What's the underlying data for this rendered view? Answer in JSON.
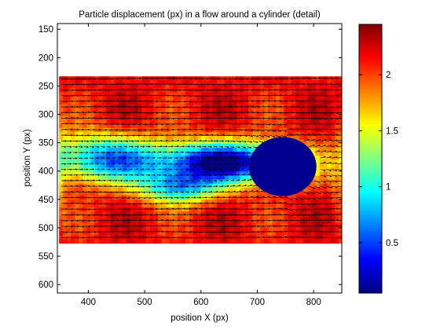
{
  "chart_data": {
    "type": "heatmap",
    "title": "Particle displacement (px) in a flow around a cylinder (detail)",
    "xlabel": "position X (px)",
    "ylabel": "position Y (px)",
    "xlim": [
      345,
      850
    ],
    "ylim": [
      140,
      615
    ],
    "y_reversed": true,
    "x_ticks": [
      400,
      500,
      600,
      700,
      800
    ],
    "y_ticks": [
      150,
      200,
      250,
      300,
      350,
      400,
      450,
      500,
      550,
      600
    ],
    "field_extent": {
      "x": [
        348,
        848
      ],
      "y": [
        233,
        527
      ]
    },
    "cylinder": {
      "center": [
        745,
        392
      ],
      "radius": [
        60,
        52
      ]
    },
    "colormap": "jet",
    "colorbar": {
      "range": [
        0.05,
        2.45
      ],
      "ticks": [
        0.5,
        1,
        1.5,
        2
      ],
      "tick_labels": [
        "0.5",
        "1",
        "1.5",
        "2"
      ]
    },
    "vector_field": {
      "shown": true,
      "color": "#000000"
    },
    "grid": false,
    "legend": "none"
  }
}
